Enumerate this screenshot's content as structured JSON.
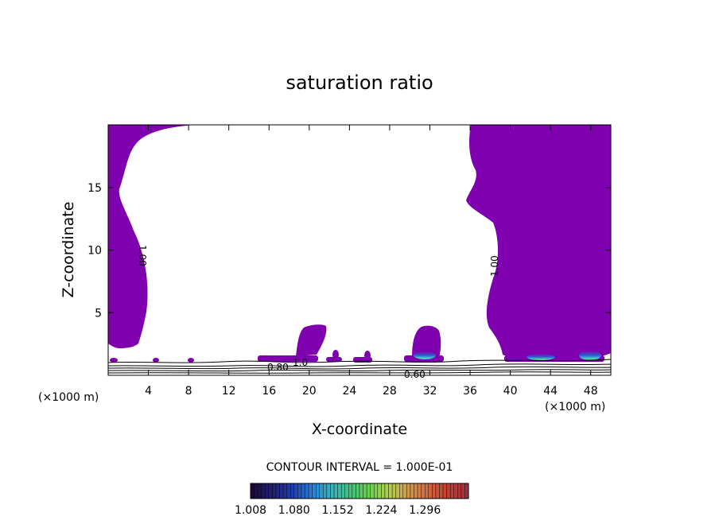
{
  "chart_data": {
    "type": "contour",
    "title": "saturation ratio",
    "xlabel": "X-coordinate",
    "ylabel": "Z-coordinate",
    "x_unit_left": "(×1000 m)",
    "x_unit_right": "(×1000 m)",
    "xlim": [
      0,
      50
    ],
    "ylim": [
      0,
      20
    ],
    "x_ticks": [
      4,
      8,
      12,
      16,
      20,
      24,
      28,
      32,
      36,
      40,
      44,
      48
    ],
    "y_ticks": [
      5,
      10,
      15
    ],
    "contour_labels": [
      {
        "text": "1.00",
        "x": 3.0,
        "y": 10.0,
        "rotate": 90
      },
      {
        "text": "1.00",
        "x": 38.5,
        "y": 9.2,
        "rotate": -90
      },
      {
        "text": "0.80",
        "x": 17.5,
        "y": 0.8,
        "rotate": 0
      },
      {
        "text": "1.0",
        "x": 19.2,
        "y": 1.2,
        "rotate": 0
      },
      {
        "text": "0.60",
        "x": 30.7,
        "y": 0.1,
        "rotate": 0
      }
    ],
    "contour_interval": "CONTOUR INTERVAL = 1.000E-01",
    "colorbar": {
      "ticks": [
        "1.008",
        "1.080",
        "1.152",
        "1.224",
        "1.296"
      ],
      "colors": [
        "#1a0a3a",
        "#23206e",
        "#1e3aa8",
        "#2a7ad6",
        "#3ab0c0",
        "#45c080",
        "#6ad050",
        "#b0d050",
        "#d09a50",
        "#d06a40",
        "#c04030",
        "#a03040"
      ]
    },
    "fill_color": "#7f00ae"
  }
}
